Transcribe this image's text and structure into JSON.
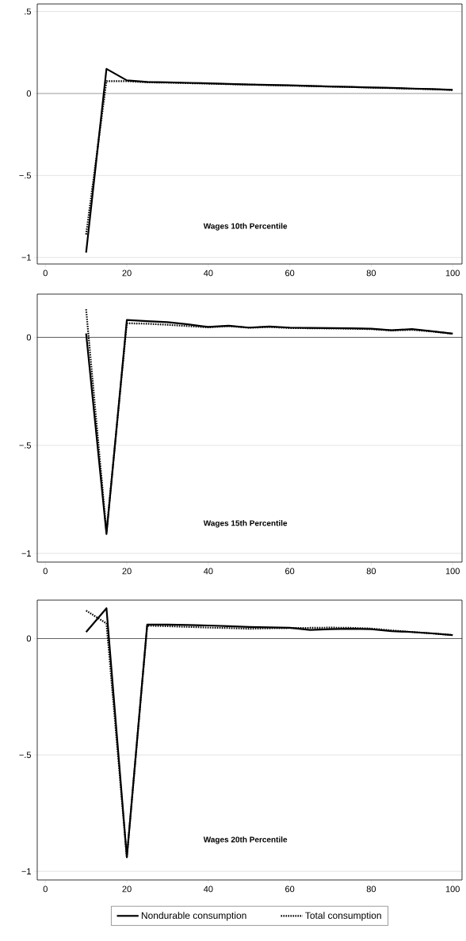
{
  "chart_data": [
    {
      "type": "line",
      "title": "Wages 10th Percentile",
      "x": [
        10,
        15,
        20,
        25,
        30,
        35,
        40,
        45,
        50,
        55,
        60,
        65,
        70,
        75,
        80,
        85,
        90,
        95,
        100
      ],
      "series": [
        {
          "color": "#000000",
          "line_style": "solid",
          "values": [
            -0.97,
            0.15,
            0.08,
            0.07,
            0.068,
            0.065,
            0.062,
            0.058,
            0.055,
            0.052,
            0.05,
            0.046,
            0.043,
            0.04,
            0.037,
            0.034,
            0.03,
            0.027,
            0.022
          ]
        },
        {
          "color": "#000000",
          "line_style": "dotted",
          "values": [
            -0.86,
            0.075,
            0.075,
            0.068,
            0.066,
            0.063,
            0.06,
            0.057,
            0.054,
            0.051,
            0.048,
            0.045,
            0.042,
            0.039,
            0.036,
            0.033,
            0.029,
            0.026,
            0.021
          ]
        }
      ],
      "xlim": [
        -2,
        102.3
      ],
      "ylim": [
        -1.04,
        0.546
      ],
      "xticks": [
        0,
        20,
        40,
        60,
        80,
        100
      ],
      "yticks": [
        {
          "value": -1,
          "label": "−1"
        },
        {
          "value": -0.5,
          "label": "−.5"
        },
        0,
        {
          "value": 0.5,
          "label": ".5"
        }
      ],
      "grid": "y",
      "ref_lines": [
        {
          "axis": "y",
          "value": 0,
          "color": "#000000"
        }
      ]
    },
    {
      "type": "line",
      "title": "Wages 15th Percentile",
      "x": [
        10,
        15,
        20,
        25,
        30,
        35,
        40,
        45,
        50,
        55,
        60,
        65,
        70,
        75,
        80,
        85,
        90,
        95,
        100
      ],
      "series": [
        {
          "color": "#000000",
          "line_style": "solid",
          "values": [
            0.018,
            -0.91,
            0.08,
            0.075,
            0.07,
            0.06,
            0.048,
            0.054,
            0.045,
            0.05,
            0.045,
            0.044,
            0.043,
            0.042,
            0.04,
            0.033,
            0.038,
            0.028,
            0.017
          ]
        },
        {
          "color": "#000000",
          "line_style": "dotted",
          "values": [
            0.13,
            -0.9,
            0.065,
            0.063,
            0.058,
            0.052,
            0.046,
            0.052,
            0.044,
            0.048,
            0.043,
            0.042,
            0.041,
            0.04,
            0.038,
            0.032,
            0.035,
            0.027,
            0.017
          ]
        }
      ],
      "xlim": [
        -2,
        102.3
      ],
      "ylim": [
        -1.04,
        0.2
      ],
      "xticks": [
        0,
        20,
        40,
        60,
        80,
        100
      ],
      "yticks": [
        {
          "value": -1,
          "label": "−1"
        },
        {
          "value": -0.5,
          "label": "−.5"
        },
        0
      ],
      "grid": "y",
      "ref_lines": [
        {
          "axis": "y",
          "value": 0,
          "color": "#000000"
        }
      ]
    },
    {
      "type": "line",
      "title": "Wages 20th Percentile",
      "x": [
        10,
        15,
        20,
        25,
        30,
        35,
        40,
        45,
        50,
        55,
        60,
        65,
        70,
        75,
        80,
        85,
        90,
        95,
        100
      ],
      "series": [
        {
          "name": "Nondurable consumption",
          "color": "#000000",
          "line_style": "solid",
          "values": [
            0.028,
            0.13,
            -0.94,
            0.06,
            0.06,
            0.058,
            0.056,
            0.053,
            0.05,
            0.048,
            0.046,
            0.037,
            0.04,
            0.042,
            0.04,
            0.032,
            0.028,
            0.022,
            0.015
          ]
        },
        {
          "name": "Total consumption",
          "color": "#000000",
          "line_style": "dotted",
          "values": [
            0.12,
            0.065,
            -0.94,
            0.055,
            0.053,
            0.05,
            0.047,
            0.045,
            0.042,
            0.044,
            0.045,
            0.046,
            0.047,
            0.046,
            0.043,
            0.035,
            0.028,
            0.022,
            0.015
          ]
        }
      ],
      "xlim": [
        -2,
        102.3
      ],
      "ylim": [
        -1.037,
        0.165
      ],
      "xticks": [
        0,
        20,
        40,
        60,
        80,
        100
      ],
      "yticks": [
        {
          "value": -1,
          "label": "−1"
        },
        {
          "value": -0.5,
          "label": "−.5"
        },
        0
      ],
      "grid": "y",
      "legend": "bottom",
      "ref_lines": [
        {
          "axis": "y",
          "value": 0,
          "color": "#000000"
        }
      ]
    }
  ]
}
